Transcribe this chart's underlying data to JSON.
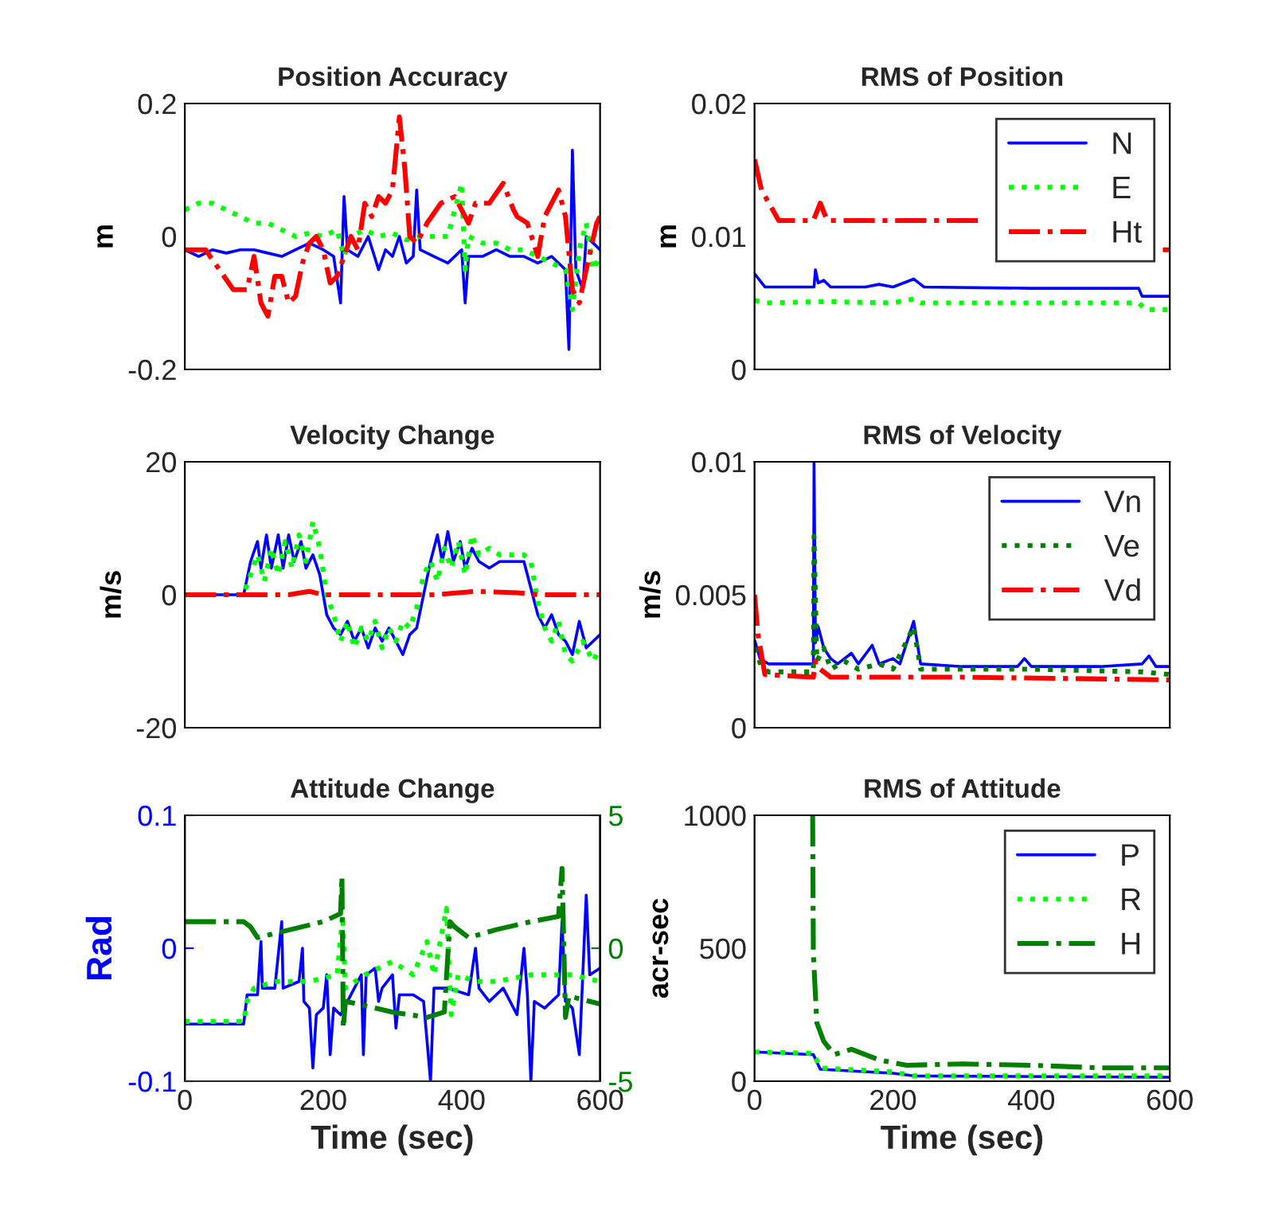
{
  "chart_data": [
    {
      "type": "line",
      "title": "Position Accuracy",
      "ylabel": "m",
      "xlim": [
        0,
        600
      ],
      "ylim": [
        -0.2,
        0.2
      ],
      "yticks": [
        -0.2,
        0,
        0.2
      ],
      "tick_labels": "y",
      "grid": false,
      "legend": false,
      "series": [
        {
          "color": "#0000ff",
          "line_style": "solid",
          "x": [
            0,
            20,
            40,
            60,
            80,
            100,
            120,
            140,
            160,
            180,
            200,
            215,
            225,
            230,
            235,
            250,
            265,
            280,
            290,
            300,
            310,
            320,
            330,
            335,
            340,
            360,
            380,
            400,
            405,
            410,
            430,
            450,
            470,
            490,
            510,
            530,
            550,
            555,
            560,
            565,
            575,
            580,
            590,
            600
          ],
          "values": [
            -0.02,
            -0.03,
            -0.02,
            -0.025,
            -0.02,
            -0.02,
            -0.025,
            -0.03,
            -0.02,
            -0.01,
            -0.02,
            -0.03,
            -0.1,
            0.06,
            -0.02,
            -0.03,
            0.0,
            -0.05,
            -0.02,
            -0.03,
            0.0,
            -0.04,
            -0.03,
            0.07,
            -0.02,
            -0.03,
            -0.04,
            -0.02,
            -0.1,
            -0.03,
            -0.03,
            -0.02,
            -0.03,
            -0.03,
            -0.04,
            -0.03,
            -0.05,
            -0.17,
            0.13,
            -0.05,
            -0.08,
            0.0,
            -0.01,
            -0.02
          ]
        },
        {
          "color": "#00ff00",
          "line_style": "dotted",
          "x": [
            0,
            20,
            40,
            60,
            80,
            100,
            120,
            140,
            160,
            180,
            200,
            220,
            230,
            240,
            260,
            280,
            300,
            320,
            340,
            360,
            380,
            400,
            405,
            410,
            430,
            450,
            470,
            490,
            510,
            530,
            550,
            560,
            570,
            580,
            590,
            600
          ],
          "values": [
            0.04,
            0.05,
            0.05,
            0.04,
            0.03,
            0.02,
            0.02,
            0.01,
            0.0,
            0.005,
            0.0,
            0.01,
            -0.03,
            0.0,
            0.01,
            0.0,
            0.005,
            -0.005,
            0.0,
            0.0,
            0.0,
            0.08,
            -0.05,
            0.0,
            -0.01,
            -0.01,
            -0.02,
            -0.02,
            -0.03,
            -0.04,
            -0.05,
            -0.11,
            -0.02,
            0.02,
            -0.05,
            -0.03
          ]
        },
        {
          "color": "#ff0000",
          "line_style": "dashdot",
          "x": [
            0,
            30,
            50,
            70,
            90,
            100,
            110,
            120,
            130,
            140,
            150,
            160,
            170,
            180,
            190,
            200,
            210,
            220,
            230,
            240,
            250,
            260,
            270,
            280,
            290,
            300,
            310,
            318,
            325,
            335,
            350,
            370,
            390,
            410,
            420,
            440,
            460,
            475,
            480,
            495,
            510,
            520,
            540,
            550,
            560,
            570,
            580,
            595,
            600
          ],
          "values": [
            -0.02,
            -0.02,
            -0.05,
            -0.08,
            -0.08,
            -0.03,
            -0.1,
            -0.12,
            -0.06,
            -0.06,
            -0.1,
            -0.09,
            -0.04,
            -0.01,
            0.0,
            -0.02,
            -0.07,
            -0.06,
            -0.03,
            0.0,
            -0.02,
            0.05,
            0.03,
            0.06,
            0.05,
            0.07,
            0.18,
            0.1,
            0.0,
            -0.01,
            0.02,
            0.05,
            0.06,
            0.02,
            0.05,
            0.05,
            0.08,
            0.04,
            0.03,
            0.02,
            -0.03,
            0.03,
            0.07,
            0.03,
            -0.08,
            -0.1,
            -0.05,
            0.02,
            0.03
          ]
        }
      ]
    },
    {
      "type": "line",
      "title": "RMS of Position",
      "ylabel": "m",
      "xlim": [
        0,
        600
      ],
      "ylim": [
        0,
        0.02
      ],
      "yticks": [
        0,
        0.01,
        0.02
      ],
      "tick_labels": "y",
      "grid": false,
      "legend": "top right",
      "series": [
        {
          "name": "N",
          "color": "#0000ff",
          "line_style": "solid",
          "x": [
            0,
            15,
            40,
            86,
            88,
            92,
            100,
            110,
            160,
            180,
            200,
            230,
            245,
            400,
            555,
            560,
            600
          ],
          "values": [
            0.0072,
            0.0062,
            0.0062,
            0.0062,
            0.0075,
            0.0065,
            0.0067,
            0.0062,
            0.0062,
            0.0064,
            0.0062,
            0.0068,
            0.0062,
            0.0061,
            0.0061,
            0.0055,
            0.0055
          ]
        },
        {
          "name": "E",
          "color": "#00ff00",
          "line_style": "dotted",
          "x": [
            0,
            15,
            100,
            200,
            230,
            240,
            400,
            555,
            565,
            600
          ],
          "values": [
            0.0052,
            0.005,
            0.0051,
            0.005,
            0.0053,
            0.005,
            0.005,
            0.005,
            0.0045,
            0.0045
          ]
        },
        {
          "name": "Ht",
          "color": "#ff0000",
          "line_style": "dashdot",
          "x": [
            0,
            10,
            35,
            85,
            95,
            105,
            200,
            330,
            340,
            590,
            600
          ],
          "values": [
            0.0158,
            0.0135,
            0.0112,
            0.0112,
            0.0125,
            0.0112,
            0.0112,
            0.0112,
            null,
            0.009,
            0.009
          ]
        }
      ]
    },
    {
      "type": "line",
      "title": "Velocity Change",
      "ylabel": "m/s",
      "xlim": [
        0,
        600
      ],
      "ylim": [
        -20,
        20
      ],
      "yticks": [
        -20,
        0,
        20
      ],
      "tick_labels": "y",
      "grid": false,
      "legend": false,
      "series": [
        {
          "color": "#0000ff",
          "line_style": "solid",
          "x": [
            0,
            85,
            95,
            105,
            110,
            118,
            125,
            135,
            142,
            150,
            158,
            168,
            175,
            185,
            195,
            205,
            215,
            225,
            235,
            245,
            255,
            265,
            275,
            285,
            295,
            305,
            315,
            325,
            335,
            345,
            355,
            365,
            372,
            380,
            388,
            398,
            405,
            415,
            425,
            440,
            455,
            470,
            490,
            495,
            510,
            520,
            530,
            540,
            550,
            560,
            570,
            580,
            600
          ],
          "values": [
            0,
            0,
            5,
            8,
            4,
            9,
            4,
            9,
            4,
            9,
            5,
            8,
            4,
            6,
            3,
            -3,
            -5,
            -6,
            -4,
            -7,
            -5,
            -8,
            -5,
            -7,
            -5,
            -7,
            -9,
            -6,
            -5,
            0,
            5,
            9,
            5,
            9.5,
            5,
            8,
            4,
            7,
            5,
            4,
            5,
            5,
            5,
            3,
            -3,
            -5,
            -3,
            -6,
            -7,
            -9,
            -4,
            -8,
            -6
          ]
        },
        {
          "color": "#00ff00",
          "line_style": "dotted",
          "x": [
            0,
            85,
            95,
            105,
            115,
            125,
            135,
            145,
            155,
            165,
            175,
            185,
            195,
            205,
            215,
            225,
            235,
            245,
            255,
            265,
            275,
            285,
            295,
            305,
            315,
            325,
            335,
            345,
            355,
            365,
            375,
            385,
            395,
            405,
            415,
            425,
            440,
            455,
            470,
            490,
            500,
            510,
            520,
            530,
            540,
            550,
            560,
            575,
            590,
            600
          ],
          "values": [
            0,
            0,
            3,
            6,
            2,
            7,
            3,
            8,
            4,
            9,
            5,
            11,
            7,
            0,
            -3,
            -7,
            -4,
            -8,
            -5,
            -7,
            -4,
            -8,
            -5,
            -7,
            -4,
            -5,
            -2,
            3,
            5,
            2,
            7,
            4,
            8,
            3,
            9,
            6,
            7,
            6,
            6,
            6,
            5,
            -1,
            -5,
            -7,
            -4,
            -9,
            -10,
            -7,
            -10,
            -8
          ]
        },
        {
          "color": "#ff0000",
          "line_style": "dashdot",
          "x": [
            0,
            150,
            180,
            200,
            360,
            420,
            480,
            510,
            600
          ],
          "values": [
            0,
            0,
            0.5,
            0,
            0,
            0.5,
            0.3,
            0,
            0
          ]
        }
      ]
    },
    {
      "type": "line",
      "title": "RMS of Velocity",
      "ylabel": "m/s",
      "xlim": [
        0,
        600
      ],
      "ylim": [
        0,
        0.01
      ],
      "yticks": [
        0,
        0.005,
        0.01
      ],
      "tick_labels": "y",
      "grid": false,
      "legend": "top right",
      "series": [
        {
          "name": "Vn",
          "color": "#0000ff",
          "line_style": "solid",
          "x": [
            0,
            8,
            20,
            85,
            86,
            88,
            92,
            100,
            110,
            120,
            140,
            150,
            170,
            180,
            200,
            210,
            230,
            240,
            300,
            380,
            390,
            400,
            500,
            560,
            570,
            580,
            600
          ],
          "values": [
            0.0033,
            0.0026,
            0.0024,
            0.0024,
            0.01,
            0.0032,
            0.0038,
            0.003,
            0.0026,
            0.0024,
            0.0028,
            0.0024,
            0.0031,
            0.0024,
            0.0026,
            0.0024,
            0.004,
            0.0024,
            0.0023,
            0.0023,
            0.0026,
            0.0023,
            0.0023,
            0.0024,
            0.0027,
            0.0023,
            0.0023
          ]
        },
        {
          "name": "Ve",
          "color": "#008000",
          "line_style": "dotted",
          "x": [
            0,
            10,
            20,
            85,
            86,
            90,
            100,
            110,
            130,
            150,
            180,
            200,
            230,
            240,
            400,
            560,
            600
          ],
          "values": [
            0.003,
            0.0023,
            0.0021,
            0.0021,
            0.0072,
            0.0025,
            0.003,
            0.0022,
            0.0025,
            0.0022,
            0.0024,
            0.0022,
            0.0038,
            0.0022,
            0.0022,
            0.0021,
            0.002
          ]
        },
        {
          "name": "Vd",
          "color": "#ff0000",
          "line_style": "dashdot",
          "x": [
            0,
            5,
            15,
            85,
            88,
            95,
            110,
            300,
            600
          ],
          "values": [
            0.005,
            0.0035,
            0.002,
            0.0019,
            0.0025,
            0.0022,
            0.0019,
            0.0019,
            0.0018
          ]
        }
      ]
    },
    {
      "type": "line",
      "title": "Attitude Change",
      "ylabel": "Rad",
      "xlabel": "Time (sec)",
      "xlim": [
        0,
        600
      ],
      "xticks": [
        0,
        200,
        400,
        600
      ],
      "ylim": [
        -0.1,
        0.1
      ],
      "yticks": [
        -0.1,
        0,
        0.1
      ],
      "y2lim": [
        -5,
        5
      ],
      "y2ticks": [
        -5,
        0,
        5
      ],
      "grid": false,
      "legend": false,
      "series": [
        {
          "color": "#0000ff",
          "line_style": "solid",
          "x": [
            0,
            85,
            90,
            105,
            110,
            112,
            130,
            140,
            142,
            165,
            170,
            172,
            180,
            185,
            190,
            200,
            205,
            210,
            215,
            225,
            230,
            255,
            258,
            262,
            275,
            280,
            285,
            300,
            305,
            310,
            330,
            345,
            355,
            360,
            380,
            410,
            420,
            425,
            440,
            460,
            480,
            490,
            495,
            500,
            505,
            520,
            540,
            545,
            550,
            560,
            570,
            575,
            580,
            585,
            600
          ],
          "values": [
            -0.057,
            -0.057,
            -0.035,
            -0.035,
            0.005,
            -0.03,
            -0.03,
            0.02,
            -0.03,
            -0.025,
            0.0,
            -0.04,
            -0.045,
            -0.09,
            -0.05,
            -0.045,
            -0.02,
            -0.08,
            -0.045,
            -0.05,
            -0.045,
            -0.02,
            -0.08,
            -0.02,
            -0.015,
            -0.04,
            -0.03,
            -0.02,
            -0.06,
            -0.035,
            -0.035,
            -0.04,
            -0.1,
            -0.03,
            -0.03,
            -0.035,
            0.0,
            -0.03,
            -0.04,
            -0.03,
            -0.05,
            0.0,
            -0.035,
            -0.1,
            -0.04,
            -0.045,
            -0.035,
            0.02,
            -0.04,
            -0.045,
            -0.08,
            -0.02,
            0.04,
            -0.02,
            -0.015
          ]
        },
        {
          "color": "#00ff00",
          "line_style": "dotted",
          "x": [
            0,
            85,
            90,
            100,
            130,
            180,
            220,
            228,
            232,
            260,
            300,
            330,
            350,
            360,
            378,
            385,
            395,
            420,
            450,
            500,
            560,
            600
          ],
          "values": [
            -0.055,
            -0.055,
            -0.04,
            -0.03,
            -0.025,
            -0.025,
            -0.02,
            0.025,
            -0.03,
            -0.02,
            -0.01,
            -0.02,
            0.005,
            -0.02,
            0.03,
            -0.05,
            -0.02,
            -0.025,
            -0.025,
            -0.02,
            -0.02,
            -0.025
          ]
        },
        {
          "color": "#008000",
          "line_style": "dashdot",
          "axis": "y2",
          "x": [
            0,
            85,
            95,
            105,
            200,
            225,
            227,
            229,
            232,
            250,
            300,
            350,
            375,
            383,
            390,
            410,
            450,
            500,
            540,
            545,
            550,
            555,
            600
          ],
          "values": [
            1.0,
            1.0,
            0.8,
            0.4,
            1.0,
            1.3,
            2.7,
            -3.0,
            -2.0,
            -2.1,
            -2.4,
            -2.6,
            -2.4,
            1.0,
            0.8,
            0.4,
            0.7,
            1.0,
            1.2,
            3.0,
            -2.6,
            -1.8,
            -2.1
          ]
        }
      ]
    },
    {
      "type": "line",
      "title": "RMS of Attitude",
      "ylabel": "acr-sec",
      "xlabel": "Time (sec)",
      "xlim": [
        0,
        600
      ],
      "xticks": [
        0,
        200,
        400,
        600
      ],
      "ylim": [
        0,
        1000
      ],
      "yticks": [
        0,
        500,
        1000
      ],
      "grid": false,
      "legend": "top right",
      "series": [
        {
          "name": "P",
          "color": "#0000ff",
          "line_style": "solid",
          "x": [
            0,
            85,
            95,
            200,
            230,
            600
          ],
          "values": [
            110,
            100,
            45,
            30,
            20,
            15
          ]
        },
        {
          "name": "R",
          "color": "#00ff00",
          "line_style": "dotted",
          "x": [
            0,
            85,
            95,
            200,
            230,
            600
          ],
          "values": [
            110,
            105,
            50,
            35,
            20,
            20
          ]
        },
        {
          "name": "H",
          "color": "#008000",
          "line_style": "dashdot",
          "x": [
            84,
            85,
            90,
            100,
            115,
            140,
            180,
            200,
            220,
            300,
            400,
            500,
            600
          ],
          "values": [
            1000,
            480,
            220,
            150,
            100,
            120,
            80,
            70,
            60,
            65,
            60,
            50,
            50
          ]
        }
      ]
    }
  ]
}
